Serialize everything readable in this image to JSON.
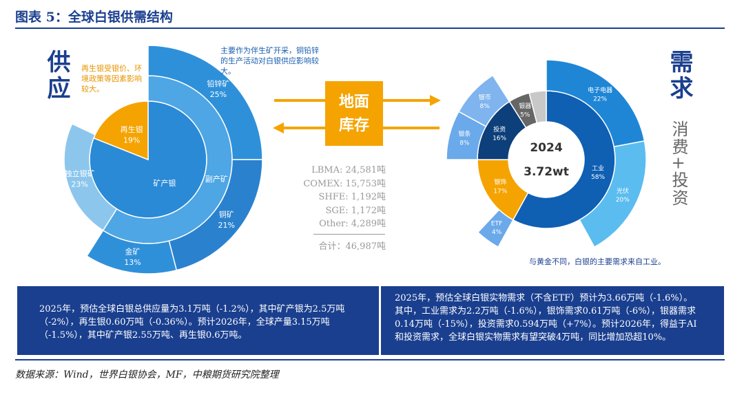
{
  "header": {
    "title": "图表 5：全球白银供需结构"
  },
  "supply": {
    "title": "供应",
    "note": "再生银受银价、环境政策等因素影响较大。",
    "top_note": "主要作为伴生矿开采，铜铅锌的生产活动对白银供应影响较大。",
    "segments": [
      {
        "name": "矿产银",
        "value": 81,
        "color": "#2a8ad6",
        "children": [
          {
            "name": "副产矿",
            "value": 59,
            "color": "#4ea6e4",
            "children": [
              {
                "name": "铅锌矿",
                "value": 25,
                "label": "25%",
                "color": "#2f90da"
              },
              {
                "name": "铜矿",
                "value": 21,
                "label": "21%",
                "color": "#2a82cf"
              },
              {
                "name": "金矿",
                "value": 13,
                "label": "13%",
                "color": "#2f90da"
              }
            ]
          },
          {
            "name": "独立银矿",
            "value": 23,
            "label": "23%",
            "color": "#8cc6ec"
          }
        ]
      },
      {
        "name": "再生银",
        "value": 19,
        "label": "19%",
        "color": "#f5a300"
      }
    ]
  },
  "inventory": {
    "title": "地面库存",
    "items": [
      "LBMA: 24,581吨",
      "COMEX: 15,753吨",
      "SHFE: 1,192吨",
      "SGE: 1,172吨",
      "Other: 4,289吨"
    ],
    "total": "合计：46,987吨"
  },
  "demand": {
    "title": "需求",
    "subtitle": "消费+投资",
    "year": "2024",
    "total": "3.72wt",
    "note": "与黄金不同，白银的主要需求来自工业。",
    "segments": [
      {
        "name": "工业",
        "value": 58,
        "label": "58%",
        "color": "#0f5fb3",
        "children": [
          {
            "name": "电子电器",
            "value": 22,
            "label": "22%",
            "color": "#1f86d6"
          },
          {
            "name": "光伏",
            "value": 20,
            "label": "20%",
            "color": "#5bbcf0"
          }
        ]
      },
      {
        "name": "银饰",
        "value": 17,
        "label": "17%",
        "color": "#f5a300",
        "children": [
          {
            "name": "ETF",
            "value": 4,
            "label": "4%",
            "color": "#6aa9ea"
          }
        ]
      },
      {
        "name": "投资",
        "value": 16,
        "label": "16%",
        "color": "#0d3f7a",
        "children": [
          {
            "name": "银条",
            "value": 8,
            "label": "8%",
            "color": "#6aa9ea"
          },
          {
            "name": "银币",
            "value": 8,
            "label": "8%",
            "color": "#7fb4ee"
          }
        ]
      },
      {
        "name": "银器",
        "value": 5,
        "label": "5%",
        "color": "#666666"
      },
      {
        "name": null,
        "value": 4,
        "color": "#c8c8c8"
      }
    ]
  },
  "summary": {
    "supply": "2025年，预估全球白银总供应量为3.1万吨（-1.2%），其中矿产银为2.5万吨（-2%），再生银0.60万吨（-0.36%）。预计2026年，全球产量3.15万吨（-1.5%），其中矿产银2.55万吨、再生银0.6万吨。",
    "demand": "2025年，预估全球白银实物需求（不含ETF）预计为3.66万吨（-1.6%）。其中，工业需求为2.2万吨（-1.6%），银饰需求0.61万吨（-6%），银器需求0.14万吨（-15%），投资需求0.594万吨（+7%）。预计2026年，得益于AI和投资需求，全球白银实物需求有望突破4万吨，同比增加恐超10%。"
  },
  "footer": {
    "source": "数据来源：Wind，世界白银协会，MF，中粮期货研究院整理"
  }
}
